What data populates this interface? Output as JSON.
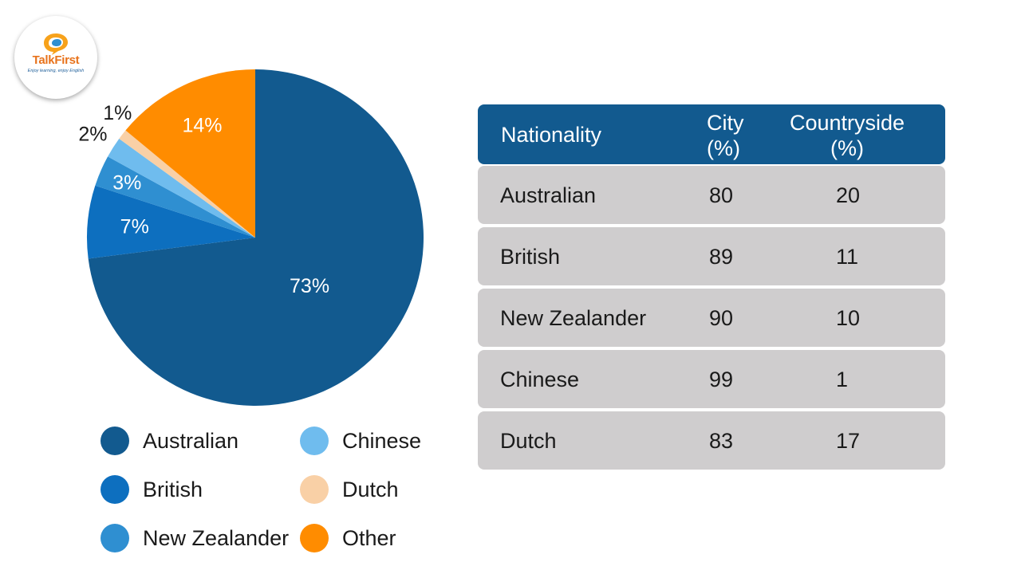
{
  "logo": {
    "name": "TalkFirst",
    "tagline": "Enjoy learning, enjoy English"
  },
  "chart_data": {
    "type": "pie",
    "slices": [
      {
        "label": "Australian",
        "value": 73,
        "display": "73%",
        "color": "#125a8f"
      },
      {
        "label": "British",
        "value": 7,
        "display": "7%",
        "color": "#0d6fbf"
      },
      {
        "label": "New Zealander",
        "value": 3,
        "display": "3%",
        "color": "#2f8fd1"
      },
      {
        "label": "Chinese",
        "value": 2,
        "display": "2%",
        "color": "#6fbcee"
      },
      {
        "label": "Dutch",
        "value": 1,
        "display": "1%",
        "color": "#f9d0a6"
      },
      {
        "label": "Other",
        "value": 14,
        "display": "14%",
        "color": "#ff8c00"
      }
    ],
    "legend_placement": "bottom"
  },
  "table": {
    "headers": [
      "Nationality",
      "City\n(%)",
      "Countryside\n(%)"
    ],
    "rows": [
      [
        "Australian",
        "80",
        "20"
      ],
      [
        "British",
        "89",
        "11"
      ],
      [
        "New Zealander",
        "90",
        "10"
      ],
      [
        "Chinese",
        "99",
        "1"
      ],
      [
        "Dutch",
        "83",
        "17"
      ]
    ]
  }
}
